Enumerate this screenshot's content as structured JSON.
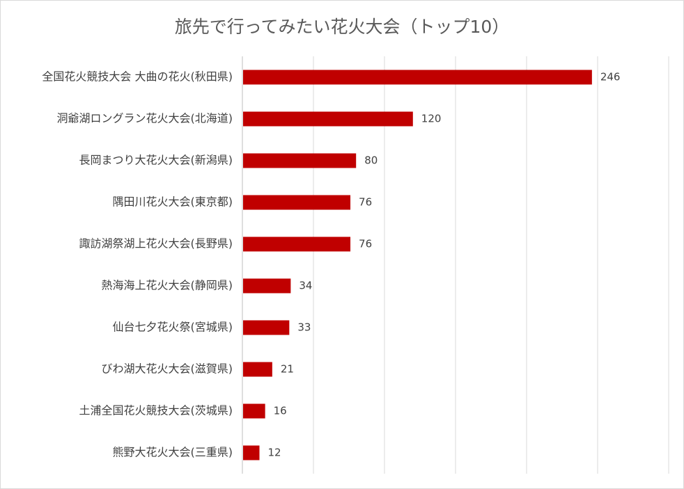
{
  "chart_data": {
    "type": "bar",
    "orientation": "horizontal",
    "title": "旅先で行ってみたい花火大会（トップ10）",
    "categories": [
      "全国花火競技大会 大曲の花火(秋田県)",
      "洞爺湖ロングラン花火大会(北海道)",
      "長岡まつり大花火大会(新潟県)",
      "隅田川花火大会(東京都)",
      "諏訪湖祭湖上花火大会(長野県)",
      "熱海海上花火大会(静岡県)",
      "仙台七夕花火祭(宮城県)",
      "びわ湖大花火大会(滋賀県)",
      "土浦全国花火競技大会(茨城県)",
      "熊野大花火大会(三重県)"
    ],
    "values": [
      246,
      120,
      80,
      76,
      76,
      34,
      33,
      21,
      16,
      12
    ],
    "xlim": [
      0,
      300
    ],
    "grid": true,
    "bar_color": "#c00000",
    "grid_color": "#d9d9d9",
    "label_color": "#404040"
  }
}
